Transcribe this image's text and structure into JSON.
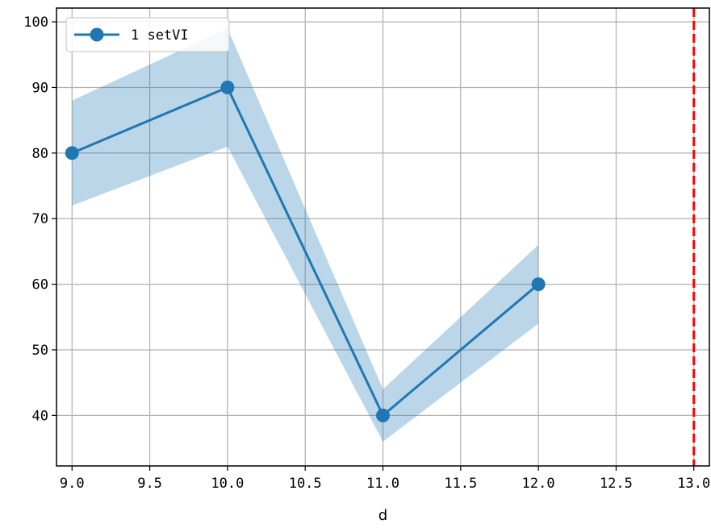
{
  "chart_data": {
    "type": "line",
    "title": "",
    "xlabel": "d",
    "ylabel": "",
    "xlim": [
      8.9,
      13.1
    ],
    "ylim": [
      32.3,
      102.1
    ],
    "xticks": [
      9.0,
      9.5,
      10.0,
      10.5,
      11.0,
      11.5,
      12.0,
      12.5,
      13.0
    ],
    "xtick_labels": [
      "9.0",
      "9.5",
      "10.0",
      "10.5",
      "11.0",
      "11.5",
      "12.0",
      "12.5",
      "13.0"
    ],
    "yticks": [
      40,
      50,
      60,
      70,
      80,
      90,
      100
    ],
    "ytick_labels": [
      "40",
      "50",
      "60",
      "70",
      "80",
      "90",
      "100"
    ],
    "grid": true,
    "legend_position": "top-left",
    "series": [
      {
        "name": "1 setVI",
        "color": "#1f77b4",
        "band_color": "#1f77b4",
        "x": [
          9.0,
          10.0,
          11.0,
          12.0
        ],
        "y": [
          80,
          90,
          40,
          60
        ],
        "lower": [
          72,
          81,
          36,
          54
        ],
        "upper": [
          88,
          99,
          44,
          66
        ]
      }
    ],
    "vline": {
      "x": 13.0,
      "color": "#ff0000",
      "style": "dashed"
    }
  }
}
